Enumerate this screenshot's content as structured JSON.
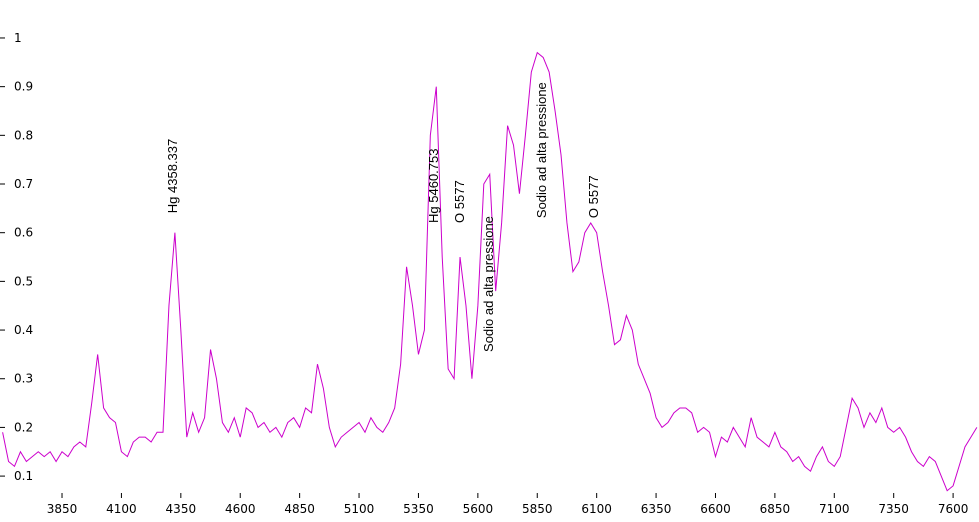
{
  "chart_data": {
    "type": "line",
    "x": [
      3600,
      3625,
      3650,
      3675,
      3700,
      3725,
      3750,
      3775,
      3800,
      3825,
      3850,
      3875,
      3900,
      3925,
      3950,
      3975,
      4000,
      4025,
      4050,
      4075,
      4100,
      4125,
      4150,
      4175,
      4200,
      4225,
      4250,
      4275,
      4300,
      4325,
      4350,
      4375,
      4400,
      4425,
      4450,
      4475,
      4500,
      4525,
      4550,
      4575,
      4600,
      4625,
      4650,
      4675,
      4700,
      4725,
      4750,
      4775,
      4800,
      4825,
      4850,
      4875,
      4900,
      4925,
      4950,
      4975,
      5000,
      5025,
      5050,
      5075,
      5100,
      5125,
      5150,
      5175,
      5200,
      5225,
      5250,
      5275,
      5300,
      5325,
      5350,
      5375,
      5400,
      5425,
      5450,
      5475,
      5500,
      5525,
      5550,
      5575,
      5600,
      5625,
      5650,
      5675,
      5700,
      5725,
      5750,
      5775,
      5800,
      5825,
      5850,
      5875,
      5900,
      5925,
      5950,
      5975,
      6000,
      6025,
      6050,
      6075,
      6100,
      6125,
      6150,
      6175,
      6200,
      6225,
      6250,
      6275,
      6300,
      6325,
      6350,
      6375,
      6400,
      6425,
      6450,
      6475,
      6500,
      6525,
      6550,
      6575,
      6600,
      6625,
      6650,
      6675,
      6700,
      6725,
      6750,
      6775,
      6800,
      6825,
      6850,
      6875,
      6900,
      6925,
      6950,
      6975,
      7000,
      7025,
      7050,
      7075,
      7100,
      7125,
      7150,
      7175,
      7200,
      7225,
      7250,
      7275,
      7300,
      7325,
      7350,
      7375,
      7400,
      7425,
      7450,
      7475,
      7500,
      7525,
      7550,
      7575,
      7600,
      7625,
      7650,
      7675,
      7700
    ],
    "values": [
      0.19,
      0.13,
      0.12,
      0.15,
      0.13,
      0.14,
      0.15,
      0.14,
      0.15,
      0.13,
      0.15,
      0.14,
      0.16,
      0.17,
      0.16,
      0.25,
      0.35,
      0.24,
      0.22,
      0.21,
      0.15,
      0.14,
      0.17,
      0.18,
      0.18,
      0.17,
      0.19,
      0.19,
      0.45,
      0.6,
      0.4,
      0.18,
      0.23,
      0.19,
      0.22,
      0.36,
      0.3,
      0.21,
      0.19,
      0.22,
      0.18,
      0.24,
      0.23,
      0.2,
      0.21,
      0.19,
      0.2,
      0.18,
      0.21,
      0.22,
      0.2,
      0.24,
      0.23,
      0.33,
      0.28,
      0.2,
      0.16,
      0.18,
      0.19,
      0.2,
      0.21,
      0.19,
      0.22,
      0.2,
      0.19,
      0.21,
      0.24,
      0.33,
      0.53,
      0.45,
      0.35,
      0.4,
      0.8,
      0.9,
      0.55,
      0.32,
      0.3,
      0.55,
      0.45,
      0.3,
      0.45,
      0.7,
      0.72,
      0.48,
      0.62,
      0.82,
      0.78,
      0.68,
      0.8,
      0.93,
      0.97,
      0.96,
      0.93,
      0.85,
      0.76,
      0.62,
      0.52,
      0.54,
      0.6,
      0.62,
      0.6,
      0.52,
      0.45,
      0.37,
      0.38,
      0.43,
      0.4,
      0.33,
      0.3,
      0.27,
      0.22,
      0.2,
      0.21,
      0.23,
      0.24,
      0.24,
      0.23,
      0.19,
      0.2,
      0.19,
      0.14,
      0.18,
      0.17,
      0.2,
      0.18,
      0.16,
      0.22,
      0.18,
      0.17,
      0.16,
      0.19,
      0.16,
      0.15,
      0.13,
      0.14,
      0.12,
      0.11,
      0.14,
      0.16,
      0.13,
      0.12,
      0.14,
      0.2,
      0.26,
      0.24,
      0.2,
      0.23,
      0.21,
      0.24,
      0.2,
      0.19,
      0.2,
      0.18,
      0.15,
      0.13,
      0.12,
      0.14,
      0.13,
      0.1,
      0.07,
      0.08,
      0.12,
      0.16,
      0.18,
      0.2
    ],
    "color": "#cc00cc",
    "xlim": [
      3589,
      7709
    ],
    "ylim": [
      0.055,
      1.078
    ],
    "xticks": [
      3850,
      4100,
      4350,
      4600,
      4850,
      5100,
      5350,
      5600,
      5850,
      6100,
      6350,
      6600,
      6850,
      7100,
      7350,
      7600
    ],
    "yticks": [
      0.1,
      0.2,
      0.3,
      0.4,
      0.5,
      0.6,
      0.7,
      0.8,
      0.9,
      1
    ],
    "annotations": [
      {
        "text": "Hg 4358.337",
        "x": 4313,
        "y": 0.64
      },
      {
        "text": "Hg 5460.753",
        "x": 5411,
        "y": 0.62
      },
      {
        "text": "O 5577",
        "x": 5520,
        "y": 0.62
      },
      {
        "text": "Sodio ad alta pressione",
        "x": 5643,
        "y": 0.355
      },
      {
        "text": "Sodio ad alta pressione",
        "x": 5866,
        "y": 0.63
      },
      {
        "text": "O 5577",
        "x": 6085,
        "y": 0.63
      }
    ]
  }
}
